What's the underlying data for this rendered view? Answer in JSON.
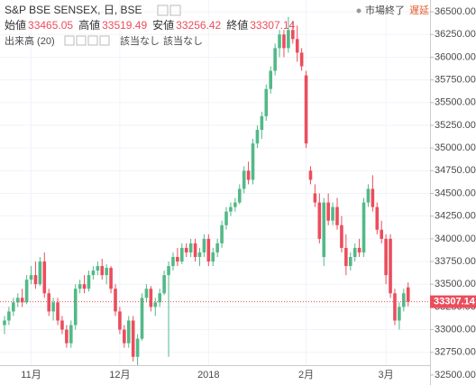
{
  "chart_data": {
    "type": "candlestick",
    "title": "S&P BSE SENSEX, 日, BSE",
    "ohlc_labels": [
      "始値",
      "高値",
      "安値",
      "終値"
    ],
    "indicator": "出来高 (20)",
    "indicator_values": [
      "該当なし",
      "該当なし"
    ],
    "market_status": "市場終了",
    "delay": "遅延",
    "up_color": "#53b987",
    "down_color": "#eb4d5c",
    "categories": [
      null,
      null,
      null,
      null,
      null,
      null,
      "11月",
      null,
      null,
      null,
      null,
      null,
      null,
      null,
      null,
      null,
      null,
      null,
      null,
      null,
      null,
      null,
      null,
      null,
      null,
      null,
      "12月",
      null,
      null,
      null,
      null,
      null,
      null,
      null,
      null,
      null,
      null,
      null,
      null,
      null,
      null,
      null,
      null,
      null,
      null,
      null,
      "2018",
      null,
      null,
      null,
      null,
      null,
      null,
      null,
      null,
      null,
      null,
      null,
      null,
      null,
      null,
      null,
      null,
      null,
      null,
      null,
      null,
      null,
      "2月",
      null,
      null,
      null,
      null,
      null,
      null,
      null,
      null,
      null,
      null,
      null,
      null,
      null,
      null,
      null,
      null,
      null,
      "3月",
      null,
      null,
      null,
      null,
      null
    ],
    "open": [
      33050,
      33100,
      33200,
      33300,
      33350,
      33300,
      33550,
      33600,
      33500,
      33750,
      33400,
      33200,
      33300,
      33100,
      33000,
      32850,
      33050,
      33450,
      33500,
      33450,
      33600,
      33650,
      33700,
      33600,
      33680,
      33450,
      33200,
      33000,
      32850,
      33100,
      32700,
      32900,
      33350,
      33450,
      33250,
      33300,
      33400,
      33600,
      33700,
      33800,
      33750,
      33900,
      33850,
      33950,
      33800,
      33850,
      34000,
      33750,
      33850,
      33950,
      34150,
      34300,
      34350,
      34400,
      34550,
      34750,
      34650,
      35050,
      35200,
      35350,
      35650,
      35850,
      36100,
      36250,
      36100,
      36300,
      36200,
      36050,
      35800,
      34750,
      34500,
      34400,
      33800,
      34400,
      34200,
      34350,
      34150,
      33900,
      33700,
      33800,
      33900,
      33850,
      34400,
      34550,
      34350,
      34100,
      34000,
      34000,
      33400,
      33100,
      33250,
      33465.05
    ],
    "high": [
      33150,
      33250,
      33350,
      33400,
      33450,
      33600,
      33700,
      33750,
      33800,
      33850,
      33450,
      33350,
      33350,
      33150,
      33050,
      33100,
      33500,
      33550,
      33600,
      33650,
      33700,
      33750,
      33780,
      33720,
      33700,
      33500,
      33250,
      33050,
      33150,
      33150,
      32950,
      33400,
      33500,
      33480,
      33350,
      33450,
      33650,
      33750,
      33850,
      33900,
      33950,
      33950,
      34000,
      34000,
      33900,
      34050,
      34050,
      33900,
      34000,
      34200,
      34350,
      34400,
      34450,
      34600,
      34800,
      34850,
      35100,
      35250,
      35400,
      35700,
      35900,
      36150,
      36300,
      36300,
      36443,
      36400,
      36350,
      36100,
      35850,
      34800,
      34600,
      34500,
      34450,
      34500,
      34400,
      34450,
      34250,
      34050,
      33850,
      33950,
      34000,
      34450,
      34600,
      34700,
      34400,
      34200,
      34050,
      34050,
      33450,
      33300,
      33450,
      33519.49
    ],
    "low": [
      32950,
      33050,
      33150,
      33250,
      33250,
      33280,
      33500,
      33450,
      33480,
      33350,
      33150,
      33100,
      33050,
      32950,
      32800,
      32800,
      33000,
      33400,
      33400,
      33420,
      33550,
      33600,
      33550,
      33500,
      33400,
      33150,
      32950,
      32800,
      32800,
      32650,
      32600,
      32880,
      33300,
      33200,
      33150,
      33250,
      33380,
      32700,
      33650,
      33700,
      33720,
      33800,
      33800,
      33750,
      33700,
      33800,
      33700,
      33700,
      33800,
      33900,
      34100,
      34250,
      34300,
      34380,
      34500,
      34600,
      34600,
      35000,
      35100,
      35300,
      35600,
      35800,
      36000,
      36000,
      36050,
      36150,
      35950,
      35850,
      35000,
      34600,
      34350,
      33950,
      33700,
      34150,
      34150,
      34100,
      33850,
      33600,
      33650,
      33750,
      33800,
      33800,
      34350,
      34300,
      34050,
      33950,
      33500,
      33350,
      33050,
      33000,
      33200,
      33256.42
    ],
    "close": [
      33100,
      33200,
      33300,
      33350,
      33300,
      33550,
      33600,
      33500,
      33750,
      33400,
      33200,
      33300,
      33100,
      33000,
      32850,
      33050,
      33450,
      33500,
      33450,
      33600,
      33650,
      33700,
      33600,
      33680,
      33450,
      33200,
      33000,
      32850,
      33100,
      32700,
      32900,
      33350,
      33450,
      33250,
      33300,
      33400,
      33600,
      33700,
      33800,
      33750,
      33900,
      33850,
      33950,
      33800,
      33850,
      34000,
      33750,
      33850,
      33950,
      34150,
      34300,
      34350,
      34400,
      34550,
      34750,
      34650,
      35050,
      35200,
      35350,
      35650,
      35850,
      36100,
      36250,
      36100,
      36300,
      36200,
      36050,
      35900,
      35050,
      34650,
      34400,
      34000,
      34400,
      34200,
      34350,
      34150,
      33900,
      33700,
      33800,
      33900,
      33850,
      34400,
      34550,
      34350,
      34100,
      34000,
      33600,
      33400,
      33100,
      33250,
      33400,
      33307.14
    ],
    "ylim": [
      32390,
      36630
    ],
    "yticks": [
      {
        "value": 32500,
        "label": "32500.00"
      },
      {
        "value": 32750,
        "label": "32750.00"
      },
      {
        "value": 33000,
        "label": "33000.00"
      },
      {
        "value": 33250,
        "label": "33250.00"
      },
      {
        "value": 33500,
        "label": "33500.00"
      },
      {
        "value": 33750,
        "label": "33750.00"
      },
      {
        "value": 34000,
        "label": "34000.00"
      },
      {
        "value": 34250,
        "label": "34250.00"
      },
      {
        "value": 34500,
        "label": "34500.00"
      },
      {
        "value": 34750,
        "label": "34750.00"
      },
      {
        "value": 35000,
        "label": "35000.00"
      },
      {
        "value": 35250,
        "label": "35250.00"
      },
      {
        "value": 35500,
        "label": "35500.00"
      },
      {
        "value": 35750,
        "label": "35750.00"
      },
      {
        "value": 36000,
        "label": "36000.00"
      },
      {
        "value": 36250,
        "label": "36250.00"
      },
      {
        "value": 36500,
        "label": "36500.00"
      }
    ],
    "grid": true
  }
}
